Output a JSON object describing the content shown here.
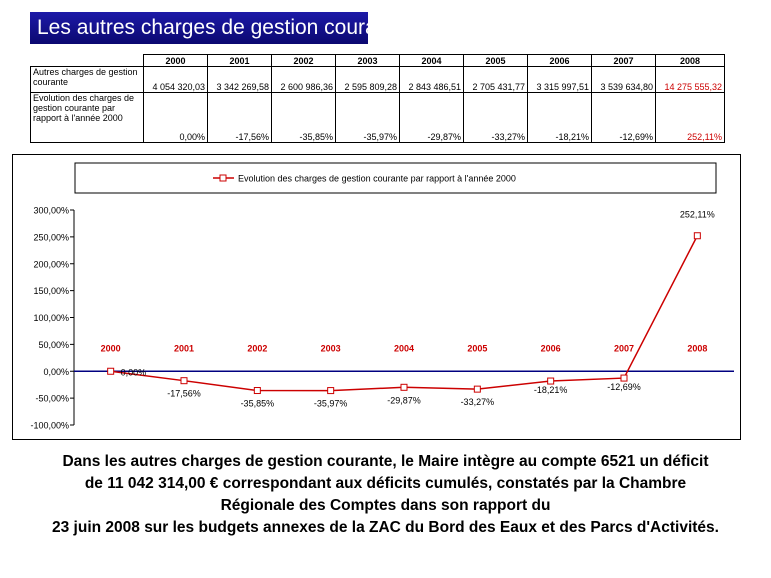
{
  "title": "Les autres charges de gestion courante",
  "table": {
    "years": [
      "2000",
      "2001",
      "2002",
      "2003",
      "2004",
      "2005",
      "2006",
      "2007",
      "2008"
    ],
    "rows": [
      {
        "label": "Autres charges de gestion courante",
        "values": [
          "4 054 320,03",
          "3 342 269,58",
          "2 600 986,36",
          "2 595 809,28",
          "2 843 486,51",
          "2 705 431,77",
          "3 315 997,51",
          "3 539 634,80",
          "14 275 555,32"
        ]
      },
      {
        "label": "Evolution des charges de gestion courante par rapport à l'année 2000",
        "values": [
          "0,00%",
          "-17,56%",
          "-35,85%",
          "-35,97%",
          "-29,87%",
          "-33,27%",
          "-18,21%",
          "-12,69%",
          "252,11%"
        ]
      }
    ]
  },
  "chart_data": {
    "type": "line",
    "categories": [
      "2000",
      "2001",
      "2002",
      "2003",
      "2004",
      "2005",
      "2006",
      "2007",
      "2008"
    ],
    "series": [
      {
        "name": "Evolution des charges de gestion courante par rapport à l'année 2000",
        "values": [
          0.0,
          -17.56,
          -35.85,
          -35.97,
          -29.87,
          -33.27,
          -18.21,
          -12.69,
          252.11
        ],
        "labels": [
          "0,00%",
          "-17,56%",
          "-35,85%",
          "-35,97%",
          "-29,87%",
          "-33,27%",
          "-18,21%",
          "-12,69%",
          "252,11%"
        ],
        "color": "#cc0000"
      }
    ],
    "yticks": [
      "300,00%",
      "250,00%",
      "200,00%",
      "150,00%",
      "100,00%",
      "50,00%",
      "0,00%",
      "-50,00%",
      "-100,00%"
    ],
    "ylim": [
      -100,
      300
    ],
    "grid": false,
    "legend_position": "top",
    "category_label_color": "#cc0000",
    "zero_line_color": "#000080"
  },
  "caption": [
    "Dans les autres charges de gestion courante, le Maire intègre au compte 6521 un déficit",
    "de 11 042 314,00 € correspondant aux déficits cumulés, constatés par la Chambre",
    "Régionale des Comptes dans son rapport du",
    "23 juin 2008 sur les budgets annexes de la ZAC du Bord des Eaux et des Parcs d'Activités."
  ]
}
